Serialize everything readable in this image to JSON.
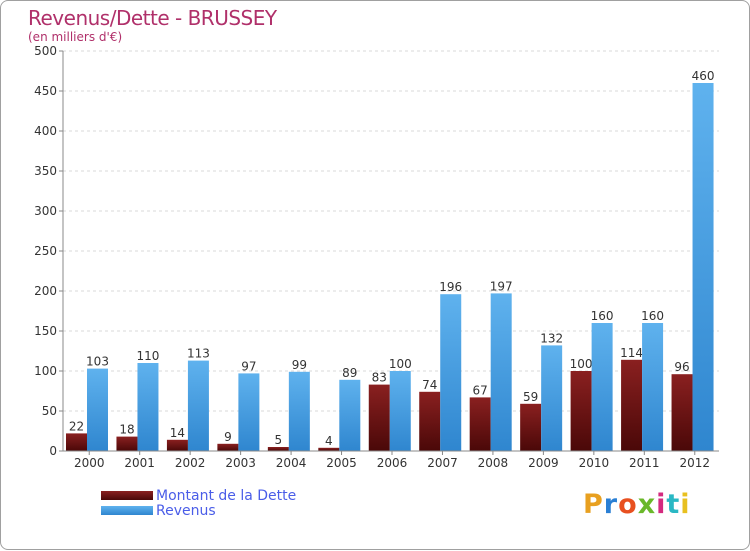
{
  "chart_data": {
    "type": "bar",
    "title": "Revenus/Dette - BRUSSEY",
    "subtitle": "(en milliers d'€)",
    "categories": [
      "2000",
      "2001",
      "2002",
      "2003",
      "2004",
      "2005",
      "2006",
      "2007",
      "2008",
      "2009",
      "2010",
      "2011",
      "2012"
    ],
    "series": [
      {
        "name": "Montant de la Dette",
        "values": [
          22,
          18,
          14,
          9,
          5,
          4,
          83,
          74,
          67,
          59,
          100,
          114,
          96
        ],
        "color": "#6b0f0f"
      },
      {
        "name": "Revenus",
        "values": [
          103,
          110,
          113,
          97,
          99,
          89,
          100,
          196,
          197,
          132,
          160,
          160,
          460
        ],
        "color": "#4aa3e6"
      }
    ],
    "ylim": [
      0,
      500
    ],
    "yticks": [
      0,
      50,
      100,
      150,
      200,
      250,
      300,
      350,
      400,
      450,
      500
    ],
    "grid": true,
    "legend": "bottom-left"
  },
  "logo": {
    "text": "Proxiti",
    "letters": [
      "P",
      "r",
      "o",
      "x",
      "i",
      "t",
      "i"
    ],
    "colors": [
      "#e8a020",
      "#2a7fd4",
      "#e85020",
      "#6ab82a",
      "#d42a7f",
      "#2ab8c4",
      "#e8c020"
    ]
  }
}
